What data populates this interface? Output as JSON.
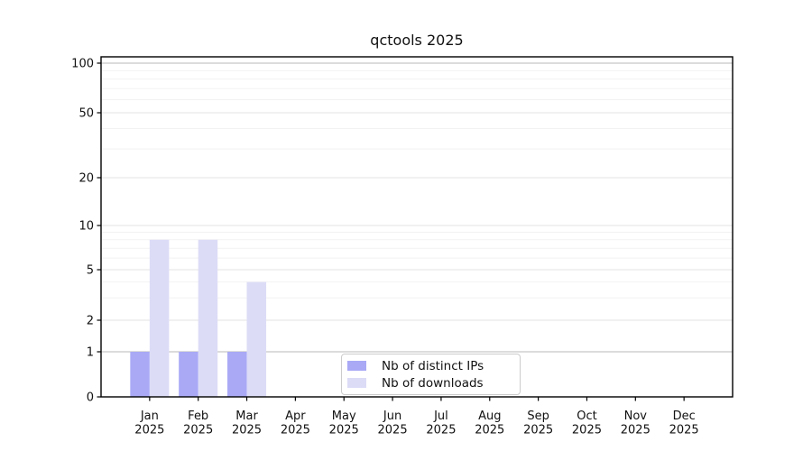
{
  "chart": {
    "colors": {
      "distinct_ips_bar": "#a9a9f6",
      "downloads_bar": "#dcdcf7",
      "grid_major": "#e3e3e3",
      "grid_minor": "#f2f2f2",
      "grid_strong": "#c8c8c8",
      "axis": "#000000",
      "legend_border": "#cccccc",
      "text": "#111111",
      "background": "#ffffff"
    }
  },
  "chart_data": {
    "type": "bar",
    "title": "qctools 2025",
    "categories": [
      "Jan",
      "Feb",
      "Mar",
      "Apr",
      "May",
      "Jun",
      "Jul",
      "Aug",
      "Sep",
      "Oct",
      "Nov",
      "Dec"
    ],
    "year_label": "2025",
    "series": [
      {
        "name": "Nb of distinct IPs",
        "color": "#a9a9f6",
        "values": [
          1,
          1,
          1,
          0,
          0,
          0,
          0,
          0,
          0,
          0,
          0,
          0
        ]
      },
      {
        "name": "Nb of downloads",
        "color": "#dcdcf7",
        "values": [
          8,
          8,
          4,
          0,
          0,
          0,
          0,
          0,
          0,
          0,
          0,
          0
        ]
      }
    ],
    "xlabel": "",
    "ylabel": "",
    "yscale": "log-like (0 baseline, log above 1)",
    "y_ticks": [
      0,
      1,
      2,
      5,
      10,
      20,
      50,
      100
    ],
    "y_minor_ticks": [
      3,
      4,
      6,
      7,
      8,
      9,
      30,
      40,
      60,
      70,
      80,
      90
    ],
    "ylim": [
      0,
      110
    ],
    "grid": true,
    "legend_position": "inside-bottom-center"
  }
}
